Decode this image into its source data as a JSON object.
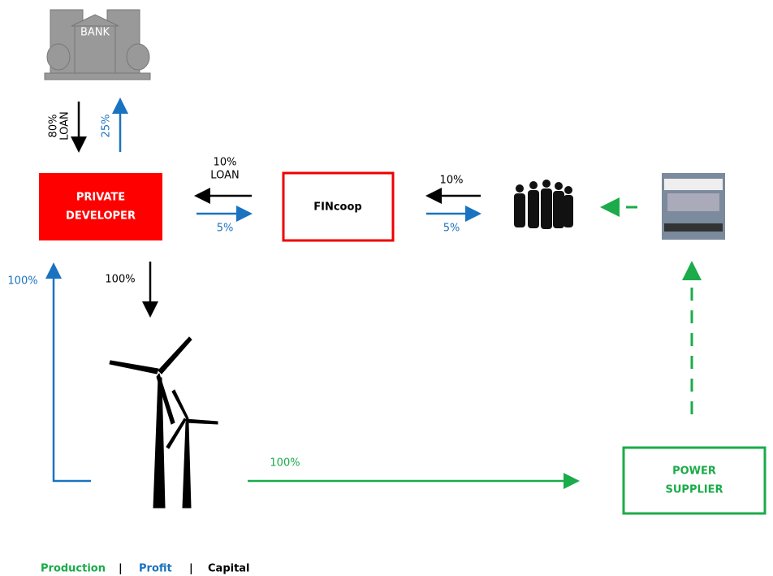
{
  "nodes": {
    "bank": {
      "label": "BANK"
    },
    "developer": {
      "lines": [
        "PRIVATE",
        "DEVELOPER"
      ]
    },
    "fincoop": {
      "label": "FINcoop"
    },
    "supplier": {
      "lines": [
        "POWER",
        "SUPPLIER"
      ]
    }
  },
  "flows": {
    "bank_loan": {
      "lines": [
        "80%",
        "LOAN"
      ]
    },
    "bank_profit": "25%",
    "coop_loan": {
      "lines": [
        "10%",
        "LOAN"
      ]
    },
    "coop_profit": "5%",
    "members_capital": "10%",
    "members_profit": "5%",
    "developer_profit": "100%",
    "developer_capital": "100%",
    "production": "100%"
  },
  "legend": [
    "Production",
    "|",
    "Profit",
    "|",
    "Capital"
  ]
}
